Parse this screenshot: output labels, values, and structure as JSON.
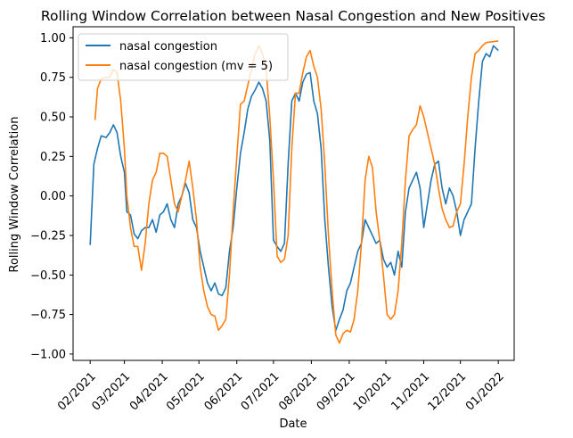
{
  "chart_data": {
    "type": "line",
    "title": "Rolling Window Correlation between Nasal Congestion and New Positives",
    "xlabel": "Date",
    "ylabel": "Rolling Window Correlation",
    "xlim": [
      "2021-01-18",
      "2022-01-14"
    ],
    "ylim": [
      -1.04,
      1.07
    ],
    "x_ticks": [
      {
        "date": "2021-02-01",
        "label": "02/2021"
      },
      {
        "date": "2021-03-01",
        "label": "03/2021"
      },
      {
        "date": "2021-04-01",
        "label": "04/2021"
      },
      {
        "date": "2021-05-01",
        "label": "05/2021"
      },
      {
        "date": "2021-06-01",
        "label": "06/2021"
      },
      {
        "date": "2021-07-01",
        "label": "07/2021"
      },
      {
        "date": "2021-08-01",
        "label": "08/2021"
      },
      {
        "date": "2021-09-01",
        "label": "09/2021"
      },
      {
        "date": "2021-10-01",
        "label": "10/2021"
      },
      {
        "date": "2021-11-01",
        "label": "11/2021"
      },
      {
        "date": "2021-12-01",
        "label": "12/2021"
      },
      {
        "date": "2022-01-01",
        "label": "01/2022"
      }
    ],
    "y_ticks": [
      {
        "value": 1.0,
        "label": "1.00"
      },
      {
        "value": 0.75,
        "label": "0.75"
      },
      {
        "value": 0.5,
        "label": "0.50"
      },
      {
        "value": 0.25,
        "label": "0.25"
      },
      {
        "value": 0.0,
        "label": "0.00"
      },
      {
        "value": -0.25,
        "label": "−0.25"
      },
      {
        "value": -0.5,
        "label": "−0.50"
      },
      {
        "value": -0.75,
        "label": "−0.75"
      },
      {
        "value": -1.0,
        "label": "−1.00"
      }
    ],
    "grid": false,
    "legend_position": "top-left",
    "series": [
      {
        "name": "nasal congestion",
        "color": "#1f77b4",
        "points": [
          [
            "2021-02-01",
            -0.31
          ],
          [
            "2021-02-04",
            0.2
          ],
          [
            "2021-02-07",
            0.3
          ],
          [
            "2021-02-10",
            0.38
          ],
          [
            "2021-02-14",
            0.37
          ],
          [
            "2021-02-17",
            0.4
          ],
          [
            "2021-02-20",
            0.45
          ],
          [
            "2021-02-23",
            0.4
          ],
          [
            "2021-02-26",
            0.25
          ],
          [
            "2021-03-01",
            0.15
          ],
          [
            "2021-03-03",
            -0.1
          ],
          [
            "2021-03-06",
            -0.12
          ],
          [
            "2021-03-09",
            -0.24
          ],
          [
            "2021-03-12",
            -0.27
          ],
          [
            "2021-03-15",
            -0.22
          ],
          [
            "2021-03-18",
            -0.2
          ],
          [
            "2021-03-21",
            -0.2
          ],
          [
            "2021-03-24",
            -0.15
          ],
          [
            "2021-03-27",
            -0.23
          ],
          [
            "2021-03-30",
            -0.12
          ],
          [
            "2021-04-02",
            -0.1
          ],
          [
            "2021-04-05",
            -0.05
          ],
          [
            "2021-04-08",
            -0.15
          ],
          [
            "2021-04-11",
            -0.2
          ],
          [
            "2021-04-14",
            -0.05
          ],
          [
            "2021-04-17",
            0.0
          ],
          [
            "2021-04-20",
            0.08
          ],
          [
            "2021-04-23",
            0.02
          ],
          [
            "2021-04-26",
            -0.15
          ],
          [
            "2021-04-29",
            -0.2
          ],
          [
            "2021-05-02",
            -0.35
          ],
          [
            "2021-05-05",
            -0.45
          ],
          [
            "2021-05-08",
            -0.55
          ],
          [
            "2021-05-11",
            -0.6
          ],
          [
            "2021-05-14",
            -0.55
          ],
          [
            "2021-05-17",
            -0.62
          ],
          [
            "2021-05-20",
            -0.63
          ],
          [
            "2021-05-23",
            -0.58
          ],
          [
            "2021-05-26",
            -0.35
          ],
          [
            "2021-05-29",
            -0.2
          ],
          [
            "2021-06-01",
            0.05
          ],
          [
            "2021-06-04",
            0.27
          ],
          [
            "2021-06-07",
            0.4
          ],
          [
            "2021-06-10",
            0.55
          ],
          [
            "2021-06-13",
            0.63
          ],
          [
            "2021-06-16",
            0.67
          ],
          [
            "2021-06-19",
            0.72
          ],
          [
            "2021-06-22",
            0.68
          ],
          [
            "2021-06-25",
            0.6
          ],
          [
            "2021-06-28",
            0.35
          ],
          [
            "2021-07-01",
            -0.28
          ],
          [
            "2021-07-04",
            -0.32
          ],
          [
            "2021-07-07",
            -0.35
          ],
          [
            "2021-07-10",
            -0.3
          ],
          [
            "2021-07-13",
            0.2
          ],
          [
            "2021-07-16",
            0.6
          ],
          [
            "2021-07-19",
            0.65
          ],
          [
            "2021-07-22",
            0.6
          ],
          [
            "2021-07-25",
            0.72
          ],
          [
            "2021-07-28",
            0.77
          ],
          [
            "2021-07-31",
            0.78
          ],
          [
            "2021-08-03",
            0.6
          ],
          [
            "2021-08-06",
            0.52
          ],
          [
            "2021-08-09",
            0.3
          ],
          [
            "2021-08-12",
            -0.15
          ],
          [
            "2021-08-15",
            -0.45
          ],
          [
            "2021-08-18",
            -0.7
          ],
          [
            "2021-08-21",
            -0.85
          ],
          [
            "2021-08-24",
            -0.78
          ],
          [
            "2021-08-27",
            -0.72
          ],
          [
            "2021-08-30",
            -0.6
          ],
          [
            "2021-09-02",
            -0.55
          ],
          [
            "2021-09-05",
            -0.45
          ],
          [
            "2021-09-08",
            -0.35
          ],
          [
            "2021-09-11",
            -0.3
          ],
          [
            "2021-09-14",
            -0.15
          ],
          [
            "2021-09-17",
            -0.2
          ],
          [
            "2021-09-20",
            -0.25
          ],
          [
            "2021-09-23",
            -0.3
          ],
          [
            "2021-09-26",
            -0.28
          ],
          [
            "2021-09-29",
            -0.4
          ],
          [
            "2021-10-02",
            -0.45
          ],
          [
            "2021-10-05",
            -0.42
          ],
          [
            "2021-10-08",
            -0.5
          ],
          [
            "2021-10-11",
            -0.35
          ],
          [
            "2021-10-14",
            -0.45
          ],
          [
            "2021-10-17",
            -0.1
          ],
          [
            "2021-10-20",
            0.05
          ],
          [
            "2021-10-23",
            0.1
          ],
          [
            "2021-10-26",
            0.15
          ],
          [
            "2021-10-29",
            0.05
          ],
          [
            "2021-11-01",
            -0.2
          ],
          [
            "2021-11-04",
            -0.05
          ],
          [
            "2021-11-07",
            0.1
          ],
          [
            "2021-11-10",
            0.2
          ],
          [
            "2021-11-13",
            0.22
          ],
          [
            "2021-11-16",
            0.05
          ],
          [
            "2021-11-19",
            -0.05
          ],
          [
            "2021-11-22",
            0.05
          ],
          [
            "2021-11-25",
            0.0
          ],
          [
            "2021-11-28",
            -0.1
          ],
          [
            "2021-12-01",
            -0.25
          ],
          [
            "2021-12-04",
            -0.15
          ],
          [
            "2021-12-07",
            -0.1
          ],
          [
            "2021-12-10",
            -0.05
          ],
          [
            "2021-12-13",
            0.3
          ],
          [
            "2021-12-16",
            0.6
          ],
          [
            "2021-12-19",
            0.85
          ],
          [
            "2021-12-22",
            0.9
          ],
          [
            "2021-12-25",
            0.88
          ],
          [
            "2021-12-28",
            0.95
          ],
          [
            "2022-01-01",
            0.92
          ]
        ]
      },
      {
        "name": "nasal congestion (mv = 5)",
        "color": "#ff7f0e",
        "points": [
          [
            "2021-02-05",
            0.48
          ],
          [
            "2021-02-07",
            0.68
          ],
          [
            "2021-02-10",
            0.74
          ],
          [
            "2021-02-14",
            0.75
          ],
          [
            "2021-02-17",
            0.75
          ],
          [
            "2021-02-20",
            0.8
          ],
          [
            "2021-02-23",
            0.78
          ],
          [
            "2021-02-26",
            0.6
          ],
          [
            "2021-03-01",
            0.3
          ],
          [
            "2021-03-03",
            0.0
          ],
          [
            "2021-03-06",
            -0.2
          ],
          [
            "2021-03-09",
            -0.32
          ],
          [
            "2021-03-12",
            -0.32
          ],
          [
            "2021-03-15",
            -0.47
          ],
          [
            "2021-03-18",
            -0.3
          ],
          [
            "2021-03-21",
            -0.05
          ],
          [
            "2021-03-24",
            0.1
          ],
          [
            "2021-03-27",
            0.15
          ],
          [
            "2021-03-30",
            0.27
          ],
          [
            "2021-04-02",
            0.27
          ],
          [
            "2021-04-05",
            0.25
          ],
          [
            "2021-04-08",
            0.1
          ],
          [
            "2021-04-11",
            -0.05
          ],
          [
            "2021-04-14",
            -0.1
          ],
          [
            "2021-04-17",
            0.0
          ],
          [
            "2021-04-20",
            0.1
          ],
          [
            "2021-04-23",
            0.22
          ],
          [
            "2021-04-26",
            0.05
          ],
          [
            "2021-04-29",
            -0.15
          ],
          [
            "2021-05-02",
            -0.45
          ],
          [
            "2021-05-05",
            -0.6
          ],
          [
            "2021-05-08",
            -0.7
          ],
          [
            "2021-05-11",
            -0.75
          ],
          [
            "2021-05-14",
            -0.76
          ],
          [
            "2021-05-17",
            -0.85
          ],
          [
            "2021-05-20",
            -0.82
          ],
          [
            "2021-05-23",
            -0.78
          ],
          [
            "2021-05-26",
            -0.5
          ],
          [
            "2021-05-29",
            -0.1
          ],
          [
            "2021-06-01",
            0.25
          ],
          [
            "2021-06-04",
            0.58
          ],
          [
            "2021-06-07",
            0.6
          ],
          [
            "2021-06-10",
            0.7
          ],
          [
            "2021-06-13",
            0.8
          ],
          [
            "2021-06-16",
            0.9
          ],
          [
            "2021-06-19",
            0.95
          ],
          [
            "2021-06-22",
            0.9
          ],
          [
            "2021-06-25",
            0.8
          ],
          [
            "2021-06-28",
            0.5
          ],
          [
            "2021-07-01",
            0.1
          ],
          [
            "2021-07-04",
            -0.38
          ],
          [
            "2021-07-07",
            -0.42
          ],
          [
            "2021-07-10",
            -0.4
          ],
          [
            "2021-07-13",
            -0.25
          ],
          [
            "2021-07-16",
            0.3
          ],
          [
            "2021-07-19",
            0.65
          ],
          [
            "2021-07-22",
            0.65
          ],
          [
            "2021-07-25",
            0.78
          ],
          [
            "2021-07-28",
            0.88
          ],
          [
            "2021-07-31",
            0.92
          ],
          [
            "2021-08-03",
            0.82
          ],
          [
            "2021-08-06",
            0.75
          ],
          [
            "2021-08-09",
            0.55
          ],
          [
            "2021-08-12",
            0.2
          ],
          [
            "2021-08-15",
            -0.25
          ],
          [
            "2021-08-18",
            -0.6
          ],
          [
            "2021-08-21",
            -0.88
          ],
          [
            "2021-08-24",
            -0.93
          ],
          [
            "2021-08-27",
            -0.87
          ],
          [
            "2021-08-30",
            -0.85
          ],
          [
            "2021-09-02",
            -0.86
          ],
          [
            "2021-09-05",
            -0.78
          ],
          [
            "2021-09-08",
            -0.6
          ],
          [
            "2021-09-11",
            -0.3
          ],
          [
            "2021-09-14",
            0.1
          ],
          [
            "2021-09-17",
            0.25
          ],
          [
            "2021-09-20",
            0.18
          ],
          [
            "2021-09-23",
            -0.1
          ],
          [
            "2021-09-26",
            -0.28
          ],
          [
            "2021-09-29",
            -0.5
          ],
          [
            "2021-10-02",
            -0.75
          ],
          [
            "2021-10-05",
            -0.78
          ],
          [
            "2021-10-08",
            -0.75
          ],
          [
            "2021-10-11",
            -0.6
          ],
          [
            "2021-10-14",
            -0.3
          ],
          [
            "2021-10-17",
            0.1
          ],
          [
            "2021-10-20",
            0.38
          ],
          [
            "2021-10-23",
            0.42
          ],
          [
            "2021-10-26",
            0.45
          ],
          [
            "2021-10-29",
            0.57
          ],
          [
            "2021-11-01",
            0.5
          ],
          [
            "2021-11-04",
            0.4
          ],
          [
            "2021-11-07",
            0.3
          ],
          [
            "2021-11-10",
            0.2
          ],
          [
            "2021-11-13",
            0.05
          ],
          [
            "2021-11-16",
            -0.08
          ],
          [
            "2021-11-19",
            -0.15
          ],
          [
            "2021-11-22",
            -0.2
          ],
          [
            "2021-11-25",
            -0.19
          ],
          [
            "2021-11-28",
            -0.1
          ],
          [
            "2021-12-01",
            -0.05
          ],
          [
            "2021-12-04",
            0.2
          ],
          [
            "2021-12-07",
            0.5
          ],
          [
            "2021-12-10",
            0.75
          ],
          [
            "2021-12-13",
            0.9
          ],
          [
            "2021-12-16",
            0.92
          ],
          [
            "2021-12-19",
            0.95
          ],
          [
            "2021-12-22",
            0.97
          ],
          [
            "2022-01-01",
            0.98
          ]
        ]
      }
    ]
  }
}
